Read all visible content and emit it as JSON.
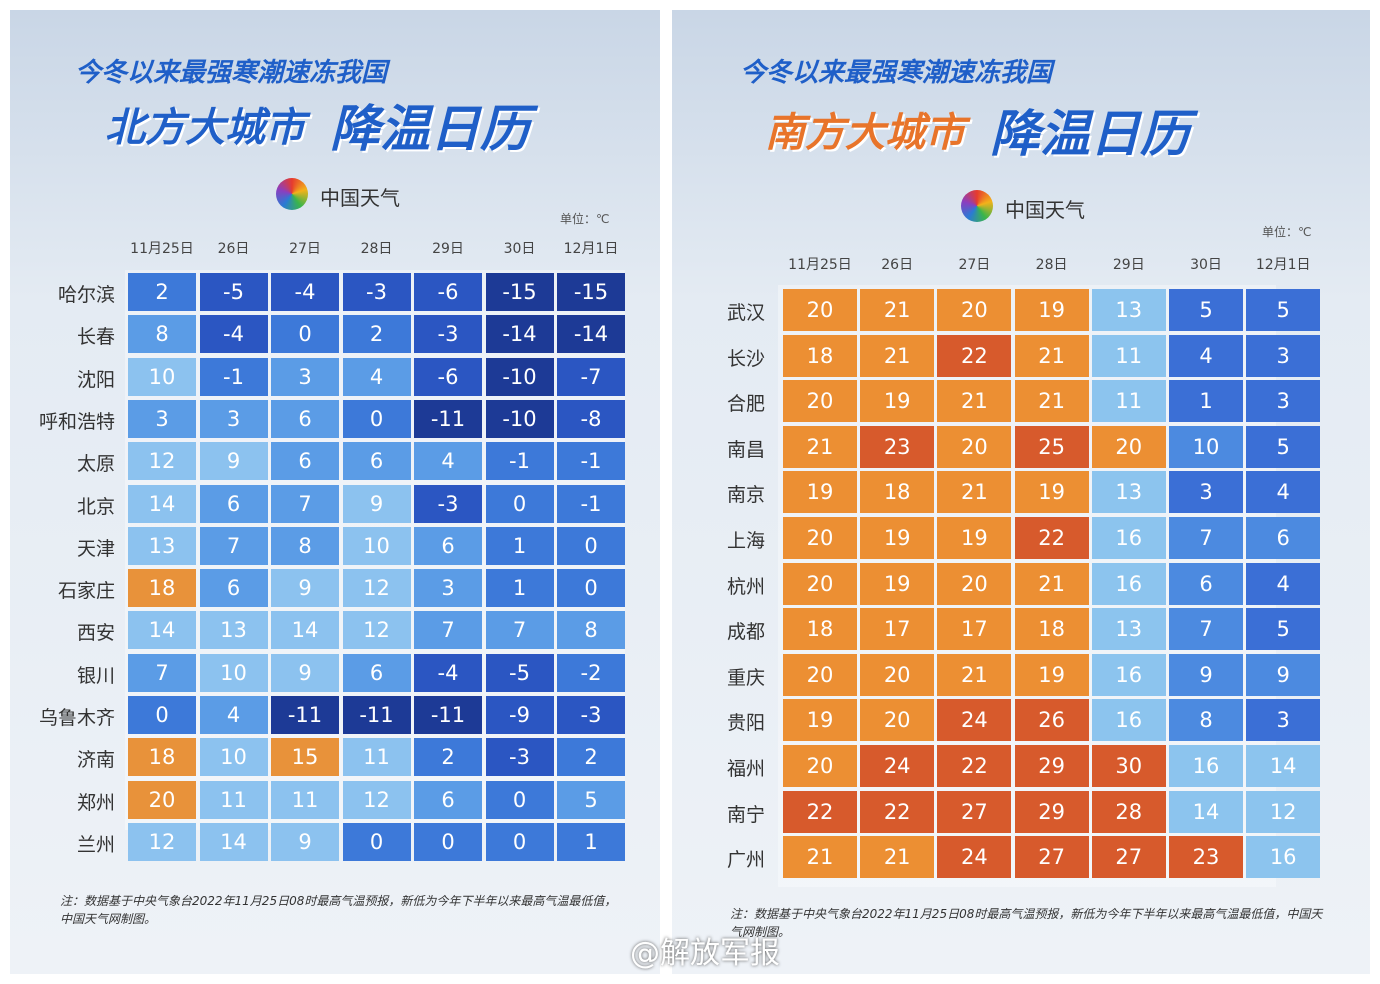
{
  "panels": [
    {
      "subtitle": "今冬以来最强寒潮速冻我国",
      "title_region": "北方大城市",
      "title_main": "降温日历",
      "logo": "中国天气",
      "unit": "单位：℃",
      "dates": [
        "11月25日",
        "26日",
        "27日",
        "28日",
        "29日",
        "30日",
        "12月1日"
      ],
      "rows": [
        {
          "city": "哈尔滨",
          "temps": [
            2,
            -5,
            -4,
            -3,
            -6,
            -15,
            -15
          ]
        },
        {
          "city": "长春",
          "temps": [
            8,
            -4,
            0,
            2,
            -3,
            -14,
            -14
          ]
        },
        {
          "city": "沈阳",
          "temps": [
            10,
            -1,
            3,
            4,
            -6,
            -10,
            -7
          ]
        },
        {
          "city": "呼和浩特",
          "temps": [
            3,
            3,
            6,
            0,
            -11,
            -10,
            -8
          ]
        },
        {
          "city": "太原",
          "temps": [
            12,
            9,
            6,
            6,
            4,
            -1,
            -1
          ]
        },
        {
          "city": "北京",
          "temps": [
            14,
            6,
            7,
            9,
            -3,
            0,
            -1
          ]
        },
        {
          "city": "天津",
          "temps": [
            13,
            7,
            8,
            10,
            6,
            1,
            0
          ]
        },
        {
          "city": "石家庄",
          "temps": [
            18,
            6,
            9,
            12,
            3,
            1,
            0
          ]
        },
        {
          "city": "西安",
          "temps": [
            14,
            13,
            14,
            12,
            7,
            7,
            8
          ]
        },
        {
          "city": "银川",
          "temps": [
            7,
            10,
            9,
            6,
            -4,
            -5,
            -2
          ]
        },
        {
          "city": "乌鲁木齐",
          "temps": [
            0,
            4,
            -11,
            -11,
            -11,
            -9,
            -3
          ]
        },
        {
          "city": "济南",
          "temps": [
            18,
            10,
            15,
            11,
            2,
            -3,
            2
          ]
        },
        {
          "city": "郑州",
          "temps": [
            20,
            11,
            11,
            12,
            6,
            0,
            5
          ]
        },
        {
          "city": "兰州",
          "temps": [
            12,
            14,
            9,
            0,
            0,
            0,
            1
          ]
        }
      ],
      "note": "注：数据基于中央气象台2022年11月25日08时最高气温预报，新低为今年下半年以来最高气温最低值，中国天气网制图。"
    },
    {
      "subtitle": "今冬以来最强寒潮速冻我国",
      "title_region": "南方大城市",
      "title_main": "降温日历",
      "logo": "中国天气",
      "unit": "单位：℃",
      "dates": [
        "11月25日",
        "26日",
        "27日",
        "28日",
        "29日",
        "30日",
        "12月1日"
      ],
      "rows": [
        {
          "city": "武汉",
          "temps": [
            20,
            21,
            20,
            19,
            13,
            5,
            5
          ]
        },
        {
          "city": "长沙",
          "temps": [
            18,
            21,
            22,
            21,
            11,
            4,
            3
          ]
        },
        {
          "city": "合肥",
          "temps": [
            20,
            19,
            21,
            21,
            11,
            1,
            3
          ]
        },
        {
          "city": "南昌",
          "temps": [
            21,
            23,
            20,
            25,
            20,
            10,
            5
          ]
        },
        {
          "city": "南京",
          "temps": [
            19,
            18,
            21,
            19,
            13,
            3,
            4
          ]
        },
        {
          "city": "上海",
          "temps": [
            20,
            19,
            19,
            22,
            16,
            7,
            6
          ]
        },
        {
          "city": "杭州",
          "temps": [
            20,
            19,
            20,
            21,
            16,
            6,
            4
          ]
        },
        {
          "city": "成都",
          "temps": [
            18,
            17,
            17,
            18,
            13,
            7,
            5
          ]
        },
        {
          "city": "重庆",
          "temps": [
            20,
            20,
            21,
            19,
            16,
            9,
            9
          ]
        },
        {
          "city": "贵阳",
          "temps": [
            19,
            20,
            24,
            26,
            16,
            8,
            3
          ]
        },
        {
          "city": "福州",
          "temps": [
            20,
            24,
            22,
            29,
            30,
            16,
            14
          ]
        },
        {
          "city": "南宁",
          "temps": [
            22,
            22,
            27,
            29,
            28,
            14,
            12
          ]
        },
        {
          "city": "广州",
          "temps": [
            21,
            21,
            24,
            27,
            27,
            23,
            16
          ]
        }
      ],
      "note": "注：数据基于中央气象台2022年11月25日08时最高气温预报，新低为今年下半年以来最高气温最低值，中国天气网制图。"
    }
  ],
  "watermark": "@解放军报"
}
